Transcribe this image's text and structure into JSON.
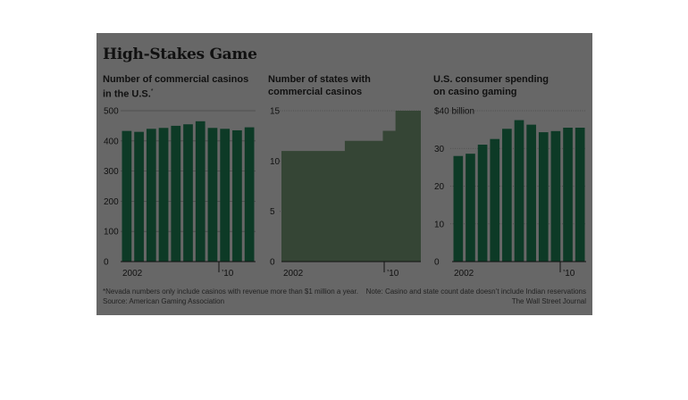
{
  "title": "High-Stakes Game",
  "colors": {
    "panel": "#676767",
    "bar": "#0d3a26",
    "bar_highlight": "#1cb07c",
    "area": "#354535"
  },
  "footnotes": {
    "left_1": "*Nevada numbers only include casinos with revenue more than $1 million a year.",
    "left_2": "Source: American Gaming Association",
    "right_1": "Note: Casino and state count date doesn’t include Indian reservations",
    "right_2": "The Wall Street Journal"
  },
  "chart_data": [
    {
      "type": "bar",
      "title": "Number of commercial casinos in the U.S.",
      "title_line1": "Number of commercial casinos",
      "title_line2": "in the U.S.",
      "title_mark": "*",
      "categories": [
        "2002",
        "2003",
        "2004",
        "2005",
        "2006",
        "2007",
        "2008",
        "2009",
        "2010",
        "2011",
        "2012"
      ],
      "values": [
        433,
        430,
        440,
        443,
        450,
        455,
        465,
        443,
        440,
        435,
        445
      ],
      "ylim": [
        0,
        500
      ],
      "yticks": [
        0,
        100,
        200,
        300,
        400,
        500
      ],
      "ytick_labels": [
        "0",
        "100",
        "200",
        "300",
        "400",
        "500"
      ],
      "xtick_labels": [
        "2002",
        "’10"
      ],
      "grid": true
    },
    {
      "type": "area",
      "title": "Number of states with commercial casinos",
      "title_line1": "Number of states with",
      "title_line2": "commercial casinos",
      "categories": [
        "2002",
        "2003",
        "2004",
        "2005",
        "2006",
        "2007",
        "2008",
        "2009",
        "2010",
        "2011",
        "2012"
      ],
      "values": [
        11,
        11,
        11,
        11,
        11,
        12,
        12,
        12,
        13,
        15,
        15
      ],
      "ylim": [
        0,
        15
      ],
      "yticks": [
        0,
        5,
        10,
        15
      ],
      "ytick_labels": [
        "0",
        "5",
        "10",
        "15"
      ],
      "xtick_labels": [
        "2002",
        "’10"
      ],
      "grid": true
    },
    {
      "type": "bar",
      "title": "U.S. consumer spending on casino gaming",
      "title_line1": "U.S. consumer spending",
      "title_line2": "on casino gaming",
      "categories": [
        "2002",
        "2003",
        "2004",
        "2005",
        "2006",
        "2007",
        "2008",
        "2009",
        "2010",
        "2011",
        "2012"
      ],
      "values": [
        28.0,
        28.6,
        31.0,
        32.5,
        35.2,
        37.5,
        36.3,
        34.3,
        34.6,
        35.5,
        35.5
      ],
      "ylim": [
        0,
        40
      ],
      "yticks": [
        0,
        10,
        20,
        30,
        40
      ],
      "ytick_labels": [
        "0",
        "10",
        "20",
        "30",
        "$40 billion"
      ],
      "xtick_labels": [
        "2002",
        "’10"
      ],
      "grid": true
    }
  ]
}
